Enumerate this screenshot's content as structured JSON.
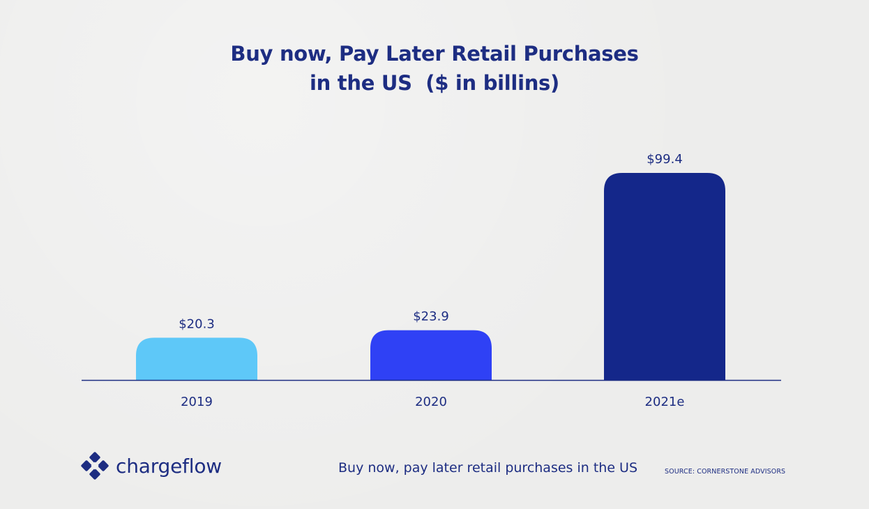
{
  "chart_data": {
    "type": "bar",
    "title_lines": [
      "Buy now, Pay Later Retail Purchases",
      "in the US  ($ in billins)"
    ],
    "categories": [
      "2019",
      "2020",
      "2021e"
    ],
    "values": [
      20.3,
      23.9,
      99.4
    ],
    "data_labels": [
      "$20.3",
      "$23.9",
      "$99.4"
    ],
    "colors": [
      "#5ec8f8",
      "#2f41f5",
      "#14278a"
    ],
    "ylim": [
      0,
      99.4
    ],
    "xlabel": "",
    "ylabel": "",
    "grid": false,
    "legend": "none"
  },
  "colors": {
    "text": "#1d2d82",
    "axis": "#1d2d82"
  },
  "footer": {
    "brand": "chargeflow",
    "logo_icon": "chargeflow-logo-icon",
    "caption": "Buy now, pay later retail purchases in the US",
    "source": "SOURCE: CORNERSTONE ADVISORS"
  }
}
